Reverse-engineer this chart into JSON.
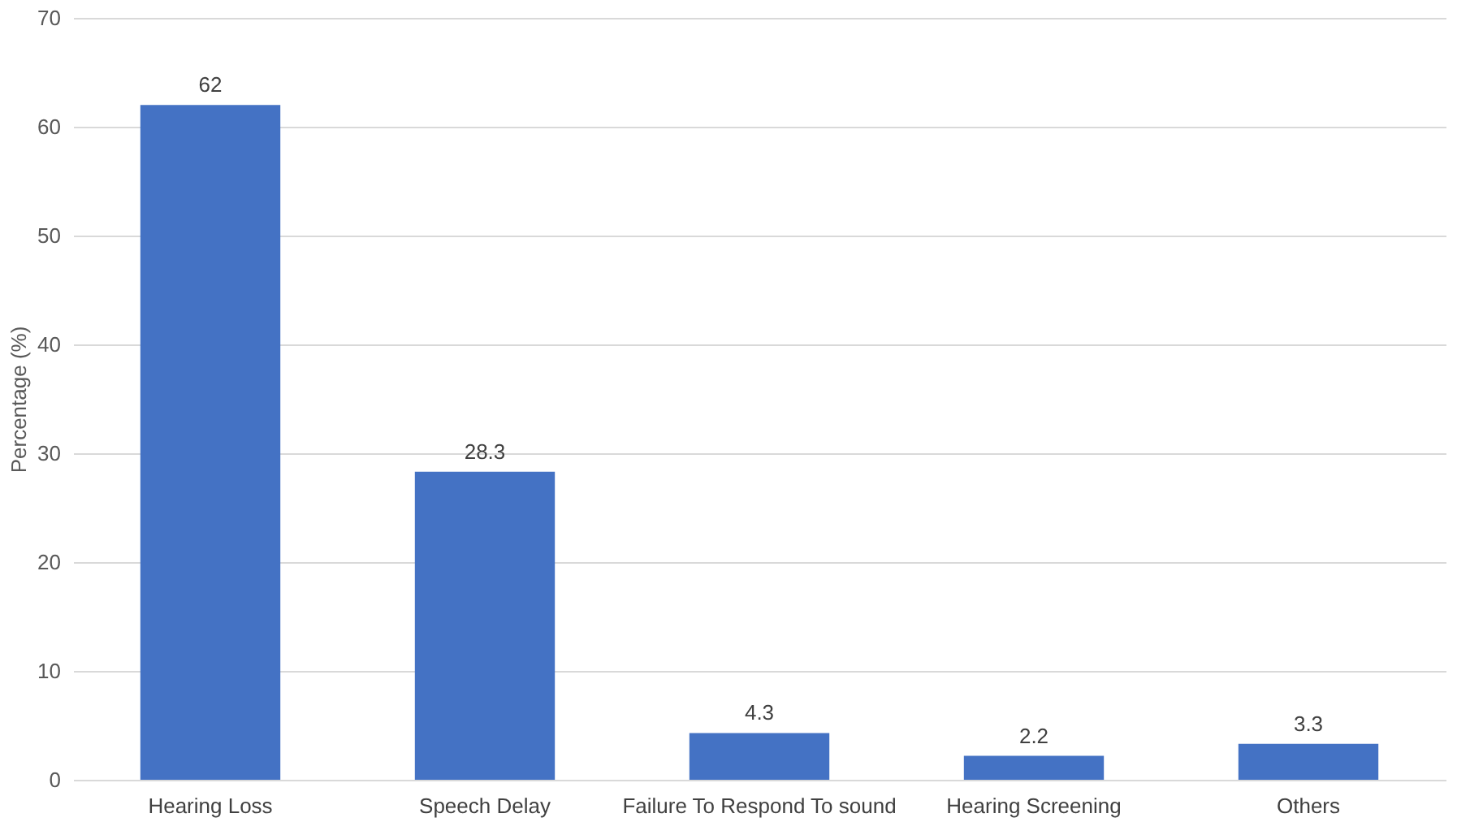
{
  "chart_data": {
    "type": "bar",
    "ylabel": "Percentage (%)",
    "categories": [
      "Hearing Loss",
      "Speech Delay",
      "Failure To Respond To sound",
      "Hearing Screening",
      "Others"
    ],
    "values": [
      62,
      28.3,
      4.3,
      2.2,
      3.3
    ],
    "color": "#4472c4",
    "ylim": [
      0,
      70
    ],
    "yticks": [
      0,
      10,
      20,
      30,
      40,
      50,
      60,
      70
    ],
    "grid": "y",
    "data_labels": true
  }
}
